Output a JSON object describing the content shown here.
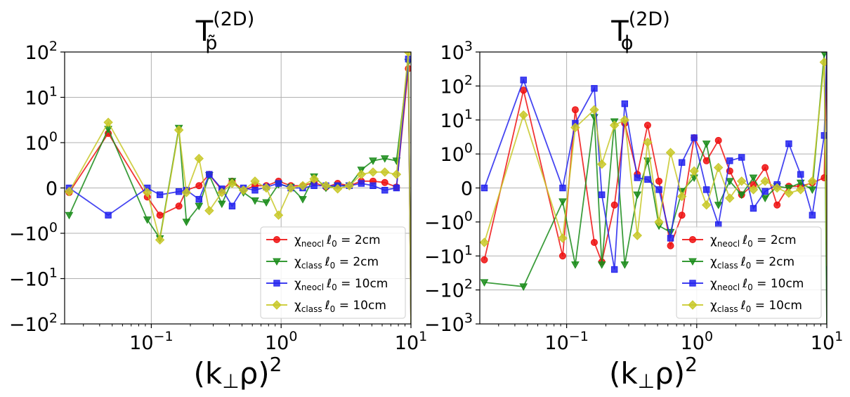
{
  "chart_data": [
    {
      "type": "line",
      "title": "T",
      "title_sup": "(2D)",
      "title_sub": "p̃",
      "xlabel": "(k",
      "xlabel_sub": "⊥",
      "xlabel_tail": "ρ)",
      "xlabel_sup": "2",
      "xscale": "log",
      "yscale": "symlog",
      "xlim": [
        0.0215,
        10
      ],
      "ylim": [
        -100,
        100
      ],
      "grid": true,
      "legend_loc": "lower right",
      "xticks": [
        {
          "value": 0.1,
          "base": "10",
          "exp": "−1"
        },
        {
          "value": 1,
          "base": "10",
          "exp": "0"
        },
        {
          "value": 10,
          "base": "10",
          "exp": "1"
        }
      ],
      "yticks": [
        {
          "value": 100,
          "base": "10",
          "exp": "2"
        },
        {
          "value": 10,
          "base": "10",
          "exp": "1"
        },
        {
          "value": 1,
          "base": "10",
          "exp": "0"
        },
        {
          "value": 0,
          "base": "0",
          "exp": ""
        },
        {
          "value": -1,
          "base": "−10",
          "exp": "0"
        },
        {
          "value": -10,
          "base": "−10",
          "exp": "1"
        },
        {
          "value": -100,
          "base": "−10",
          "exp": "2"
        }
      ],
      "series": [
        {
          "name": "neocl 2cm",
          "label_chi": "χ",
          "label_sub": "neocl",
          "label_ell": "ℓ",
          "label_rest": " = 2cm",
          "color": "#ee1111",
          "marker": "circle",
          "x": [
            0.0233,
            0.0466,
            0.0932,
            0.1165,
            0.1631,
            0.1864,
            0.233,
            0.2796,
            0.3495,
            0.4194,
            0.5126,
            0.6291,
            0.7689,
            0.9553,
            1.1883,
            1.4679,
            1.7941,
            2.2135,
            2.7261,
            3.3552,
            4.1474,
            5.1026,
            6.2908,
            7.7354,
            9.5528,
            10
          ],
          "y": [
            -0.1,
            1.6,
            -0.2,
            -0.6,
            -0.4,
            -0.05,
            0.05,
            0.3,
            -0.05,
            0.15,
            -0.05,
            0.05,
            0.05,
            0.15,
            0.05,
            0.05,
            0.12,
            0.02,
            0.1,
            0.05,
            0.15,
            0.15,
            0.12,
            0.02,
            43,
            -100
          ]
        },
        {
          "name": "class 2cm",
          "label_chi": "χ",
          "label_sub": "class",
          "label_ell": "ℓ",
          "label_rest": " = 2cm",
          "color": "#1a8c1a",
          "marker": "triangle-down",
          "x": [
            0.0233,
            0.0466,
            0.0932,
            0.1165,
            0.1631,
            0.1864,
            0.233,
            0.2796,
            0.3495,
            0.4194,
            0.5126,
            0.6291,
            0.7689,
            0.9553,
            1.1883,
            1.4679,
            1.7941,
            2.2135,
            2.7261,
            3.3552,
            4.1474,
            5.1026,
            6.2908,
            7.7354,
            9.5528,
            10
          ],
          "y": [
            -0.6,
            2.0,
            -0.7,
            -1.3,
            2.1,
            -0.75,
            -0.4,
            0.28,
            -0.35,
            0.15,
            -0.1,
            -0.28,
            -0.32,
            0.08,
            0.02,
            -0.25,
            0.25,
            0.0,
            0.05,
            0.05,
            0.4,
            0.6,
            0.65,
            0.6,
            60,
            -100
          ]
        },
        {
          "name": "neocl 10cm",
          "label_chi": "χ",
          "label_sub": "neocl",
          "label_ell": "ℓ",
          "label_rest": " = 10cm",
          "color": "#2424ee",
          "marker": "square",
          "x": [
            0.0233,
            0.0466,
            0.0932,
            0.1165,
            0.1631,
            0.1864,
            0.233,
            0.2796,
            0.3495,
            0.4194,
            0.5126,
            0.6291,
            0.7689,
            0.9553,
            1.1883,
            1.4679,
            1.7941,
            2.2135,
            2.7261,
            3.3552,
            4.1474,
            5.1026,
            6.2908,
            7.7354,
            9.5528,
            10
          ],
          "y": [
            0.0,
            -0.6,
            0.0,
            -0.15,
            -0.08,
            -0.05,
            -0.25,
            0.3,
            -0.02,
            -0.4,
            0.0,
            -0.05,
            0.02,
            0.1,
            0.0,
            0.0,
            0.05,
            0.05,
            0.05,
            0.05,
            0.1,
            0.05,
            -0.05,
            0.0,
            70,
            -100
          ]
        },
        {
          "name": "class 10cm",
          "label_chi": "χ",
          "label_sub": "class",
          "label_ell": "ℓ",
          "label_rest": " = 10cm",
          "color": "#c8c828",
          "marker": "diamond",
          "x": [
            0.0233,
            0.0466,
            0.0932,
            0.1165,
            0.1631,
            0.1864,
            0.233,
            0.2796,
            0.3495,
            0.4194,
            0.5126,
            0.6291,
            0.7689,
            0.9553,
            1.1883,
            1.4679,
            1.7941,
            2.2135,
            2.7261,
            3.3552,
            4.1474,
            5.1026,
            6.2908,
            7.7354,
            9.5528,
            10
          ],
          "y": [
            -0.08,
            2.8,
            -0.1,
            -1.4,
            1.9,
            -0.1,
            0.65,
            -0.5,
            -0.1,
            0.1,
            -0.05,
            0.15,
            0.0,
            -0.6,
            0.0,
            0.05,
            0.2,
            0.05,
            -0.02,
            0.05,
            0.3,
            0.35,
            0.35,
            0.3,
            100,
            -100
          ]
        }
      ]
    },
    {
      "type": "line",
      "title": "T",
      "title_sup": "(2D)",
      "title_sub": "ϕ",
      "xlabel": "(k",
      "xlabel_sub": "⊥",
      "xlabel_tail": "ρ)",
      "xlabel_sup": "2",
      "xscale": "log",
      "yscale": "symlog",
      "xlim": [
        0.0215,
        10
      ],
      "ylim": [
        -1000,
        1000
      ],
      "grid": true,
      "legend_loc": "lower right",
      "xticks": [
        {
          "value": 0.1,
          "base": "10",
          "exp": "−1"
        },
        {
          "value": 1,
          "base": "10",
          "exp": "0"
        },
        {
          "value": 10,
          "base": "10",
          "exp": "1"
        }
      ],
      "yticks": [
        {
          "value": 1000,
          "base": "10",
          "exp": "3"
        },
        {
          "value": 100,
          "base": "10",
          "exp": "2"
        },
        {
          "value": 10,
          "base": "10",
          "exp": "1"
        },
        {
          "value": 1,
          "base": "10",
          "exp": "0"
        },
        {
          "value": 0,
          "base": "0",
          "exp": ""
        },
        {
          "value": -1,
          "base": "−10",
          "exp": "0"
        },
        {
          "value": -10,
          "base": "−10",
          "exp": "1"
        },
        {
          "value": -100,
          "base": "−10",
          "exp": "2"
        },
        {
          "value": -1000,
          "base": "−10",
          "exp": "3"
        }
      ],
      "series": [
        {
          "name": "neocl 2cm",
          "label_chi": "χ",
          "label_sub": "neocl",
          "label_ell": "ℓ",
          "label_rest": " = 2cm",
          "color": "#ee1111",
          "marker": "circle",
          "x": [
            0.0233,
            0.0466,
            0.0932,
            0.1165,
            0.1631,
            0.1864,
            0.233,
            0.2796,
            0.3495,
            0.4194,
            0.5126,
            0.6291,
            0.7689,
            0.9553,
            1.1883,
            1.4679,
            1.7941,
            2.2135,
            2.7261,
            3.3552,
            4.1474,
            5.1026,
            6.2908,
            7.7354,
            9.5528,
            10
          ],
          "y": [
            -13,
            75,
            -10,
            20,
            -4,
            -15,
            -0.5,
            8,
            0.4,
            7,
            0.2,
            -5,
            -0.8,
            3,
            0.8,
            2.5,
            0.5,
            -0.2,
            0.1,
            0.6,
            -0.5,
            0.05,
            0.05,
            0.15,
            0.3,
            1000
          ]
        },
        {
          "name": "class 2cm",
          "label_chi": "χ",
          "label_sub": "class",
          "label_ell": "ℓ",
          "label_rest": " = 2cm",
          "color": "#1a8c1a",
          "marker": "triangle-down",
          "x": [
            0.0233,
            0.0466,
            0.0932,
            0.1165,
            0.1631,
            0.1864,
            0.233,
            0.2796,
            0.3495,
            0.4194,
            0.5126,
            0.6291,
            0.7689,
            0.9553,
            1.1883,
            1.4679,
            1.7941,
            2.2135,
            2.7261,
            3.3552,
            4.1474,
            5.1026,
            6.2908,
            7.7354,
            9.5528,
            10
          ],
          "y": [
            -60,
            -80,
            -0.4,
            -18,
            12,
            -18,
            9,
            -18,
            -0.2,
            0.8,
            -1.3,
            -2,
            -0.1,
            0.3,
            2,
            -0.5,
            0.2,
            -0.2,
            0.3,
            -0.3,
            0.05,
            0.0,
            0.15,
            -0.05,
            900,
            -1000
          ]
        },
        {
          "name": "neocl 10cm",
          "label_chi": "χ",
          "label_sub": "neocl",
          "label_ell": "ℓ",
          "label_rest": " = 10cm",
          "color": "#2424ee",
          "marker": "square",
          "x": [
            0.0233,
            0.0466,
            0.0932,
            0.1165,
            0.1631,
            0.1864,
            0.233,
            0.2796,
            0.3495,
            0.4194,
            0.5126,
            0.6291,
            0.7689,
            0.9553,
            1.1883,
            1.4679,
            1.7941,
            2.2135,
            2.7261,
            3.3552,
            4.1474,
            5.1026,
            6.2908,
            7.7354,
            9.5528,
            10
          ],
          "y": [
            0.0,
            150,
            0.0,
            8,
            85,
            -0.2,
            -25,
            30,
            0.3,
            0.25,
            -0.05,
            -3,
            0.75,
            3,
            -0.05,
            -1.2,
            0.8,
            0.9,
            -0.6,
            -0.1,
            0.1,
            2,
            0.4,
            -0.8,
            3.5,
            1000
          ]
        },
        {
          "name": "class 10cm",
          "label_chi": "χ",
          "label_sub": "class",
          "label_ell": "ℓ",
          "label_rest": " = 10cm",
          "color": "#c8c828",
          "marker": "diamond",
          "x": [
            0.0233,
            0.0466,
            0.0932,
            0.1165,
            0.1631,
            0.1864,
            0.233,
            0.2796,
            0.3495,
            0.4194,
            0.5126,
            0.6291,
            0.7689,
            0.9553,
            1.1883,
            1.4679,
            1.7941,
            2.2135,
            2.7261,
            3.3552,
            4.1474,
            5.1026,
            6.2908,
            7.7354,
            9.5528,
            10
          ],
          "y": [
            -4,
            14,
            -3,
            6,
            20,
            0.7,
            7,
            10,
            -2.5,
            2.2,
            -1.0,
            1.1,
            -0.25,
            0.5,
            -0.5,
            0.6,
            -0.3,
            0.2,
            -0.05,
            0.2,
            0.0,
            -0.15,
            -0.05,
            0.2,
            500,
            -20
          ]
        }
      ]
    }
  ]
}
